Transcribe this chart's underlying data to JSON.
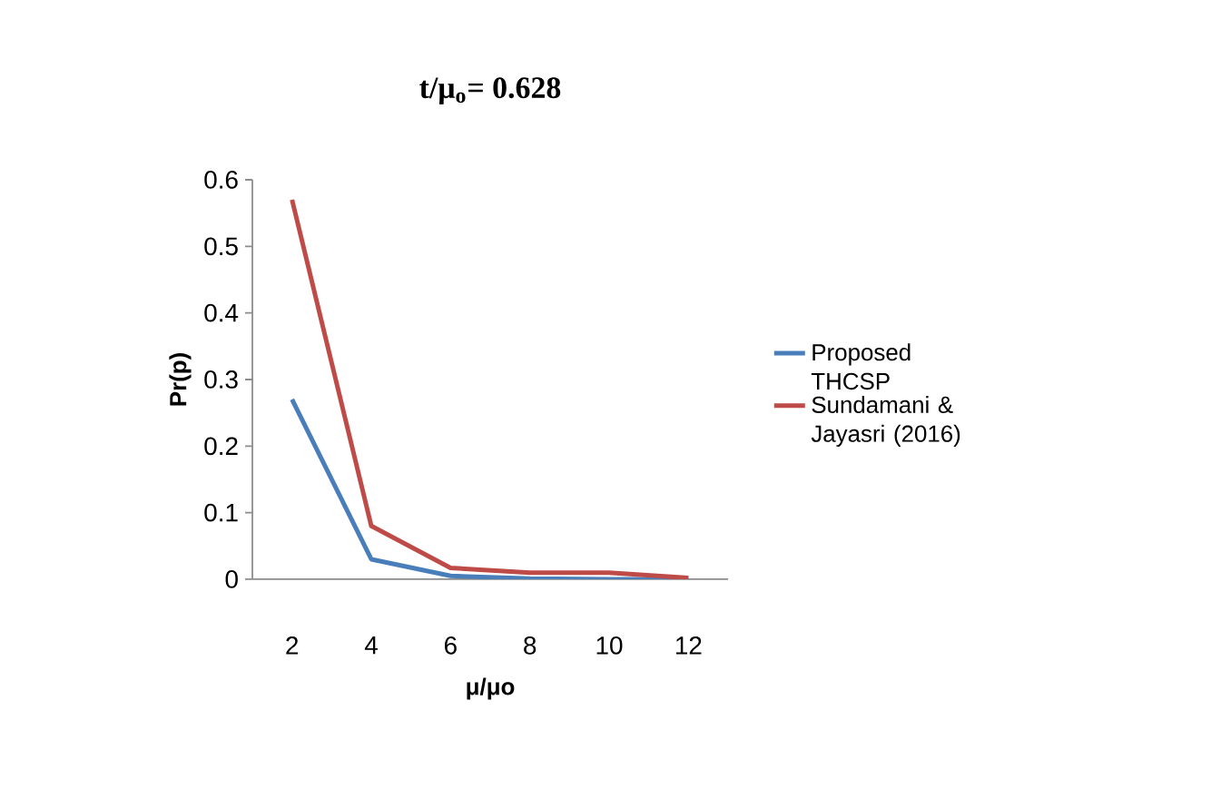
{
  "chart_data": {
    "type": "line",
    "title": "t/μ$_{o}$= 0.628",
    "xlabel": "μ/μo",
    "ylabel": "Pr(p)",
    "categories": [
      "2",
      "4",
      "6",
      "8",
      "10",
      "12"
    ],
    "series": [
      {
        "name": "Proposed THCSP",
        "color": "#4a7ebb",
        "values": [
          0.27,
          0.03,
          0.005,
          0.001,
          0,
          0
        ]
      },
      {
        "name": "Sundamani & Jayasri (2016)",
        "color": "#be4b48",
        "values": [
          0.57,
          0.08,
          0.017,
          0.01,
          0.01,
          0.002
        ]
      }
    ],
    "ylim": [
      0,
      0.6
    ],
    "yticks": [
      0,
      0.1,
      0.2,
      0.3,
      0.4,
      0.5,
      0.6
    ],
    "grid": false,
    "legend": "right",
    "marker": "none",
    "line_style": "solid"
  }
}
